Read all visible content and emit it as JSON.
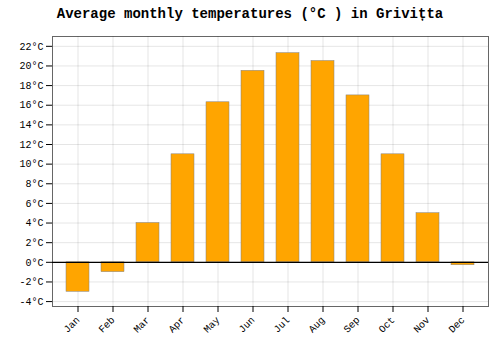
{
  "chart_data": {
    "type": "bar",
    "title": "Average monthly temperatures (°C ) in Grivițta",
    "categories": [
      "Jan",
      "Feb",
      "Mar",
      "Apr",
      "May",
      "Jun",
      "Jul",
      "Aug",
      "Sep",
      "Oct",
      "Nov",
      "Dec"
    ],
    "values": [
      -3.0,
      -1.0,
      4.0,
      11.0,
      16.3,
      19.5,
      21.3,
      20.5,
      17.0,
      11.0,
      5.0,
      -0.3
    ],
    "color": "#FFA500",
    "ylim": [
      -4.5,
      23
    ],
    "yticks": [
      {
        "value": -4,
        "label": "-4°C"
      },
      {
        "value": -2,
        "label": "-2°C"
      },
      {
        "value": 0,
        "label": "0°C"
      },
      {
        "value": 2,
        "label": "2°C"
      },
      {
        "value": 4,
        "label": "4°C"
      },
      {
        "value": 6,
        "label": "6°C"
      },
      {
        "value": 8,
        "label": "8°C"
      },
      {
        "value": 10,
        "label": "10°C"
      },
      {
        "value": 12,
        "label": "12°C"
      },
      {
        "value": 14,
        "label": "14°C"
      },
      {
        "value": 16,
        "label": "16°C"
      },
      {
        "value": 18,
        "label": "18°C"
      },
      {
        "value": 20,
        "label": "20°C"
      },
      {
        "value": 22,
        "label": "22°C"
      }
    ],
    "grid": true
  }
}
